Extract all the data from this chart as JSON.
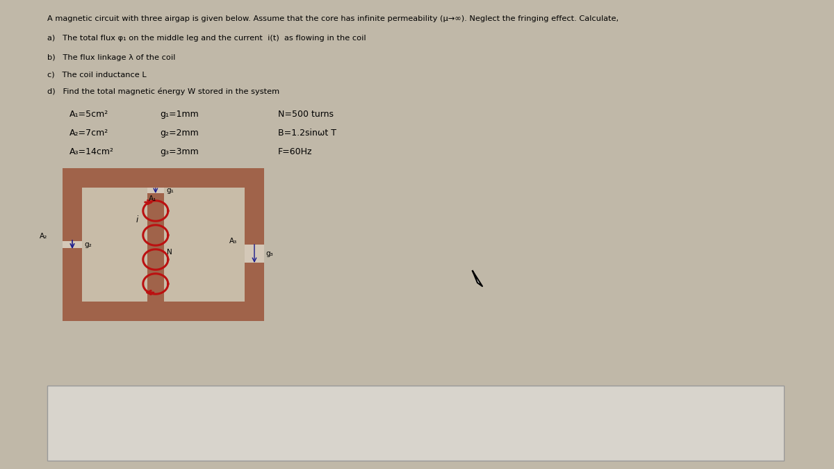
{
  "page_bg": "#c0b8a8",
  "core_color": "#a0634a",
  "gap_color": "#d4c8b8",
  "interior_color": "#c8bca8",
  "coil_color": "#bb1111",
  "answer_box_color": "#d8d4cc",
  "answer_box_border": "#999999",
  "title": "A magnetic circuit with three airgap is given below. Assume that the core has infinite permeability (μ→∞). Neglect the fringing effect. Calculate,",
  "item_a": "a)   The total flux φ₁ on the middle leg and the current  i(t)  as flowing in the coil",
  "item_b": "b)   The flux linkage λ of the coil",
  "item_c": "c)   The coil inductance L",
  "item_d": "d)   Find the total magnetic énergy W stored in the system",
  "p1c1": "A₁=5cm²",
  "p1c2": "g₁=1mm",
  "p1c3": "N=500 turns",
  "p2c1": "A₂=7cm²",
  "p2c2": "g₂=2mm",
  "p2c3": "B=1.2sinωt T",
  "p3c1": "A₃=14cm²",
  "p3c2": "g₃=3mm",
  "p3c3": "F=60Hz"
}
